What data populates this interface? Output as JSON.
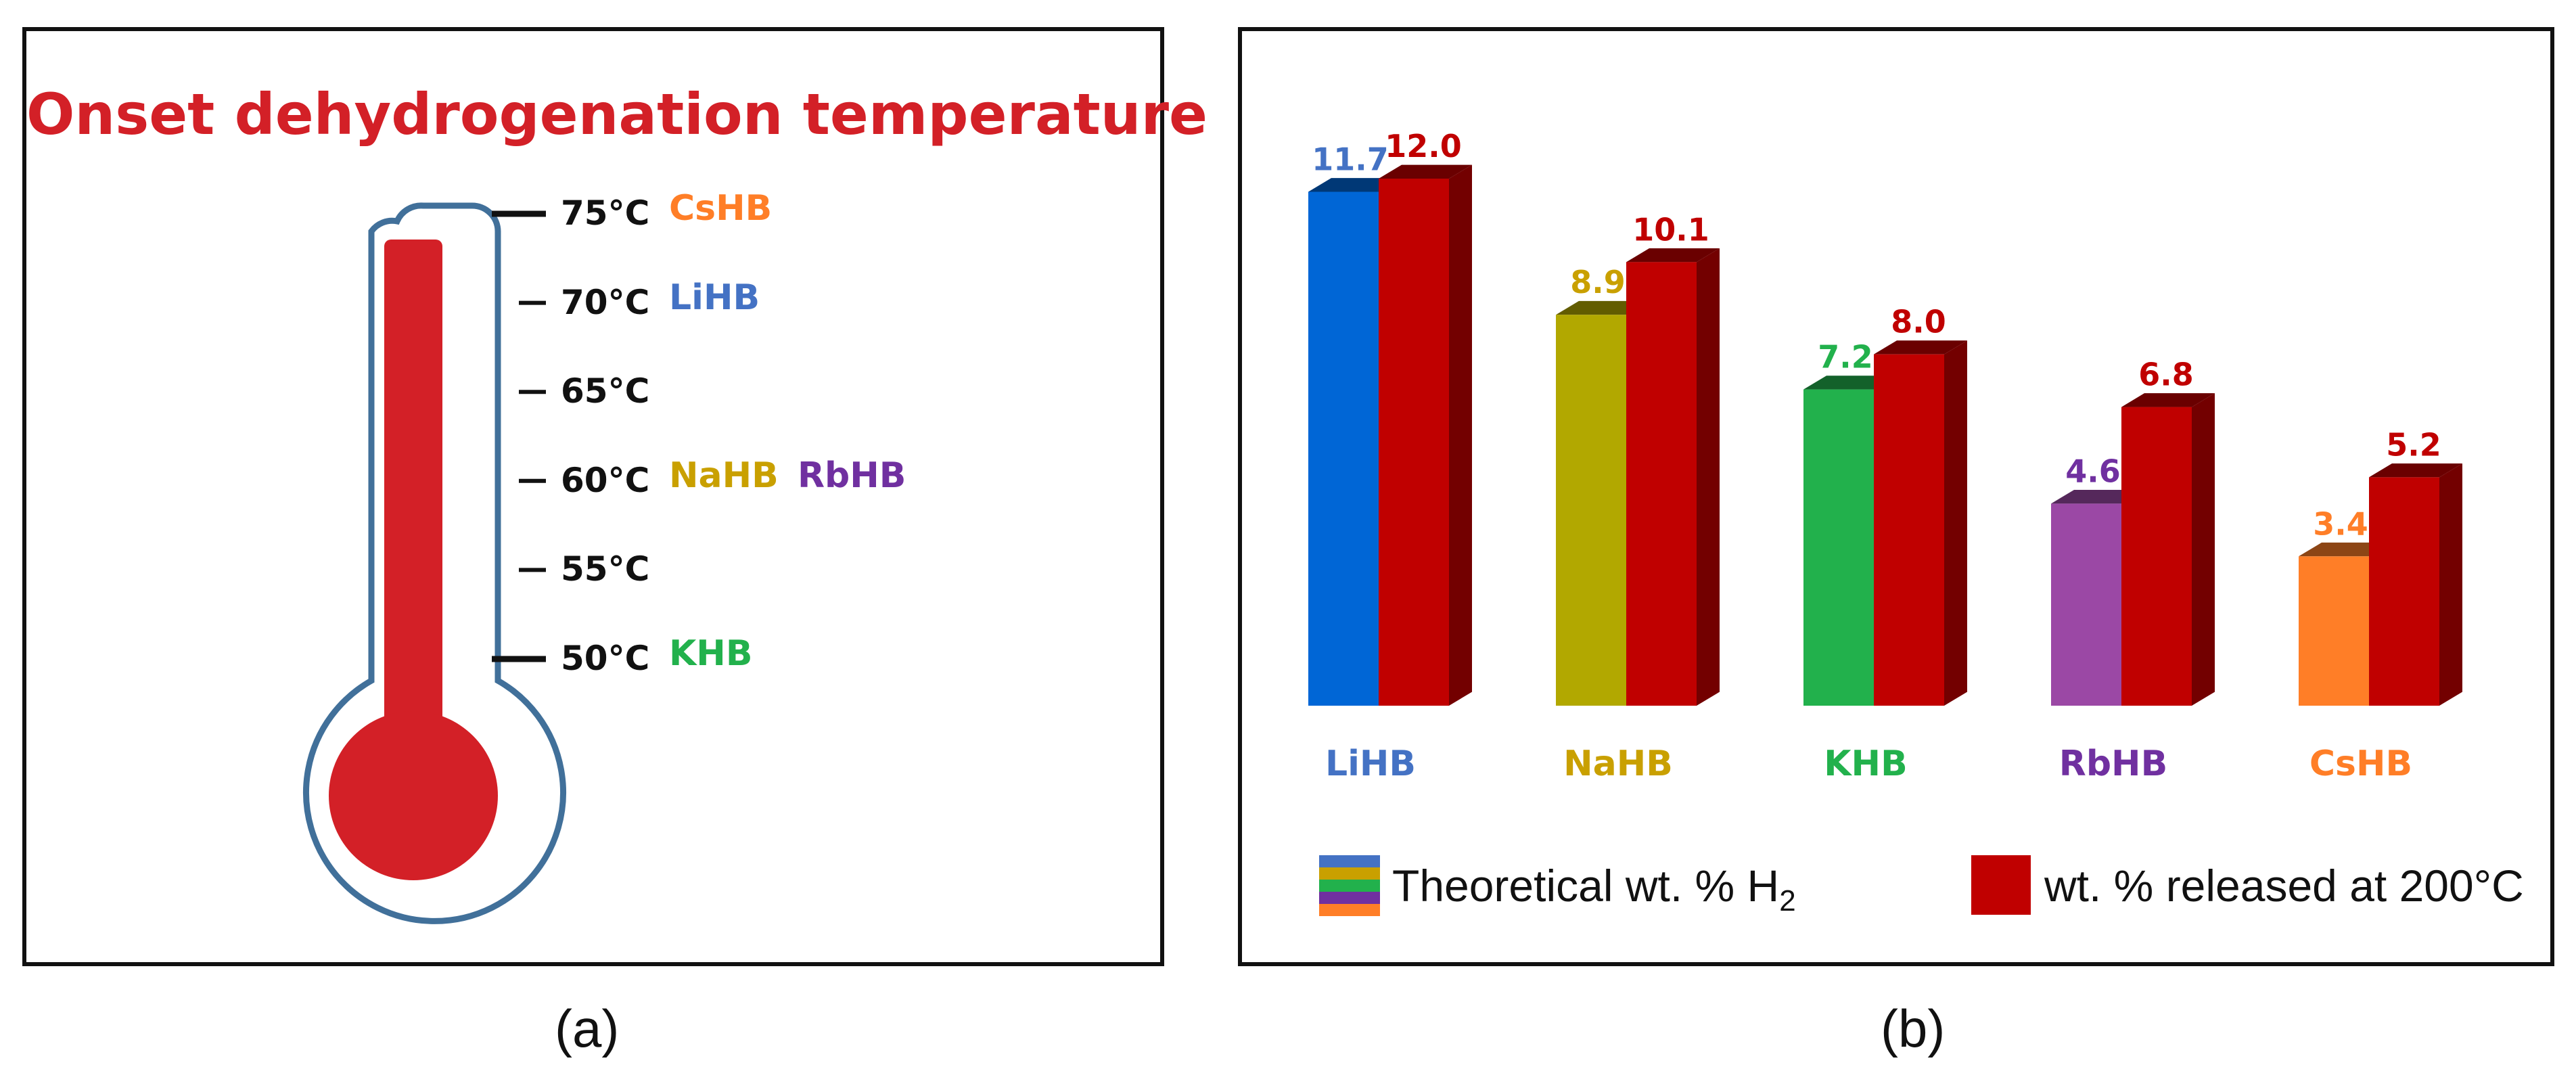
{
  "panel_a": {
    "title": "Onset dehydrogenation temperature",
    "caption": "(a)",
    "ticks": [
      {
        "label": "75°C",
        "compounds": [
          "CsHB"
        ]
      },
      {
        "label": "70°C",
        "compounds": [
          "LiHB"
        ]
      },
      {
        "label": "65°C",
        "compounds": []
      },
      {
        "label": "60°C",
        "compounds": [
          "NaHB",
          "RbHB"
        ]
      },
      {
        "label": "55°C",
        "compounds": []
      },
      {
        "label": "50°C",
        "compounds": [
          "KHB"
        ]
      }
    ],
    "colors": {
      "thermometer_fill": "#d32027",
      "thermometer_outline": "#41709a"
    }
  },
  "panel_b": {
    "caption": "(b)",
    "legend": {
      "theoretical_prefix": "Theoretical wt. % H",
      "theoretical_subscript": "2",
      "released": "wt. % released at 200°C"
    }
  },
  "colors": {
    "LiHB": "#0066d6",
    "NaHB": "#b2a800",
    "KHB": "#22b14c",
    "RbHB": "#9b48a5",
    "CsHB": "#ff7e27",
    "released": "#c00000",
    "LiHB_label": "#4472c4",
    "NaHB_label": "#c9a000",
    "RbHB_label": "#7030a0"
  },
  "chart_data": [
    {
      "type": "bar",
      "categories": [
        "LiHB",
        "NaHB",
        "KHB",
        "RbHB",
        "CsHB"
      ],
      "series": [
        {
          "name": "Theoretical wt. % H2",
          "values": [
            11.7,
            8.9,
            7.2,
            4.6,
            3.4
          ]
        },
        {
          "name": "wt. % released at 200°C",
          "values": [
            12.0,
            10.1,
            8.0,
            6.8,
            5.2
          ]
        }
      ],
      "title": "",
      "xlabel": "",
      "ylabel": "",
      "ylim": [
        0,
        12.0
      ],
      "grid": false,
      "legend_position": "bottom"
    }
  ]
}
